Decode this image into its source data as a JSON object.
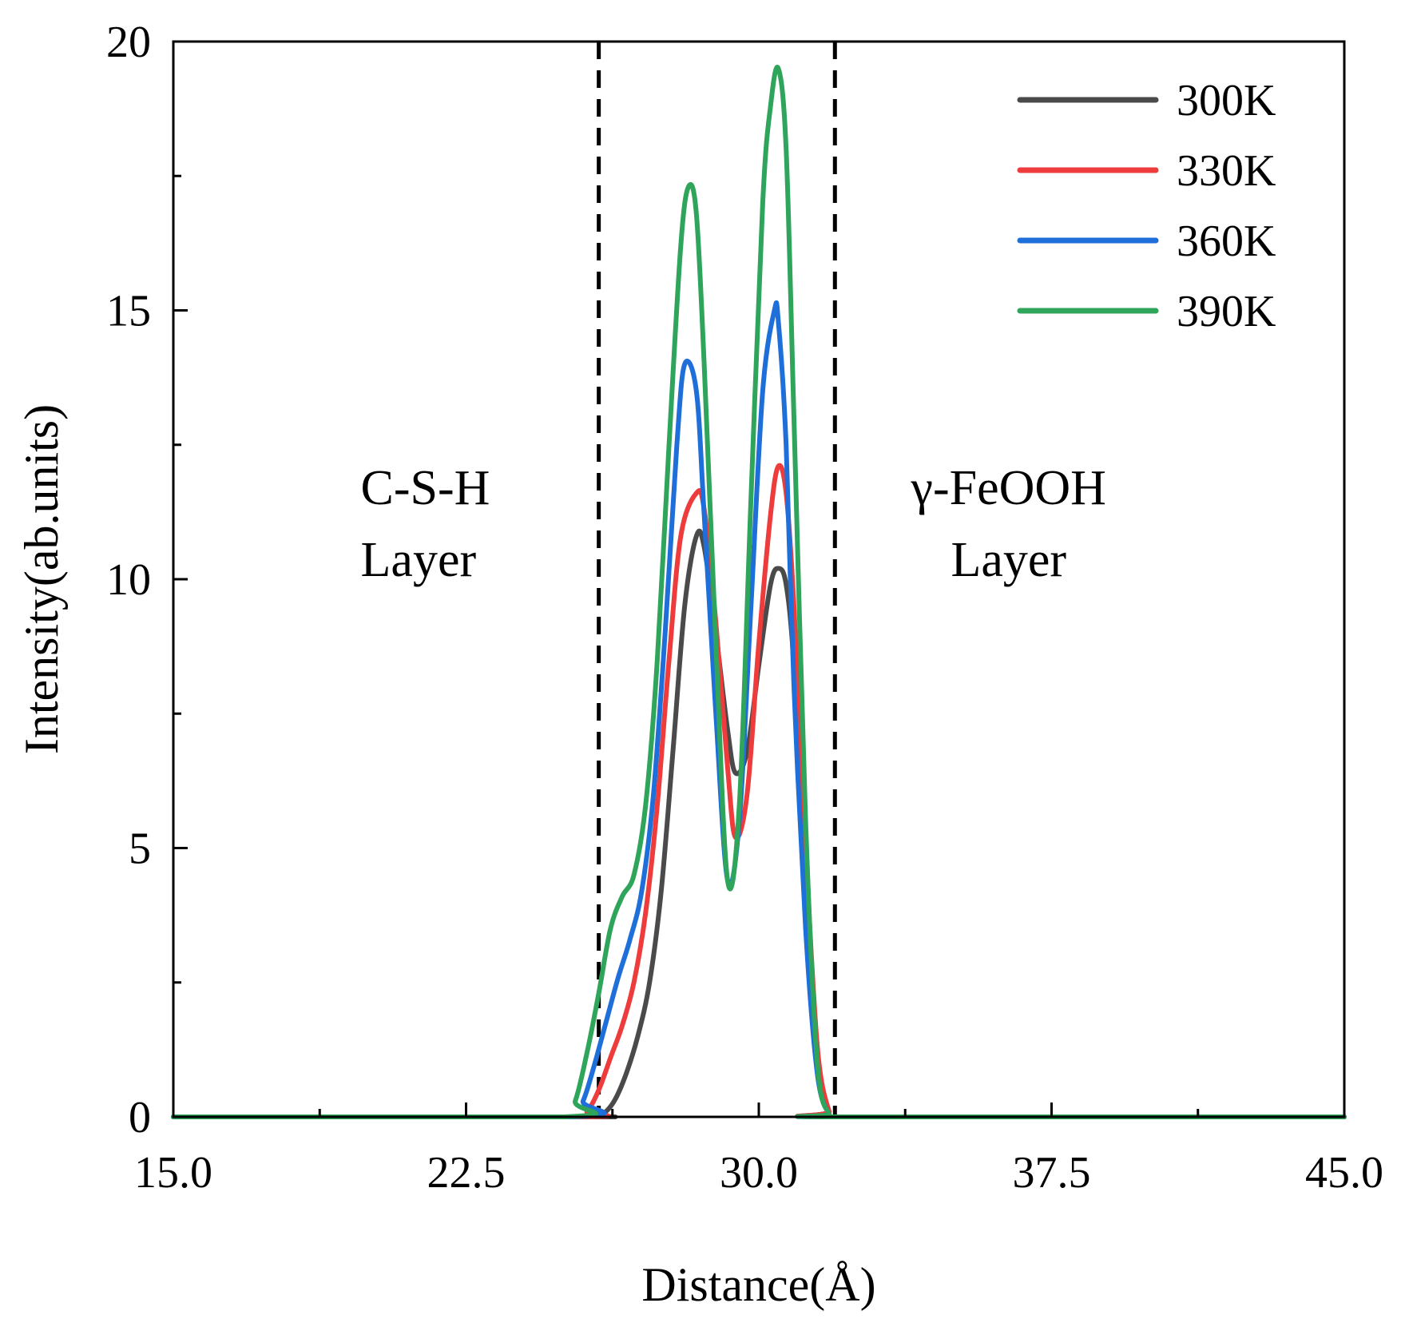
{
  "chart_data": {
    "type": "line",
    "title": "",
    "xlabel": "Distance(Å)",
    "ylabel": "Intensity(ab.units)",
    "xlim": [
      15.0,
      45.0
    ],
    "ylim": [
      0,
      20
    ],
    "x_ticks": [
      15.0,
      22.5,
      30.0,
      37.5,
      45.0
    ],
    "x_tick_labels": [
      "15.0",
      "22.5",
      "30.0",
      "37.5",
      "45.0"
    ],
    "y_ticks": [
      0,
      5,
      10,
      15,
      20
    ],
    "y_tick_labels": [
      "0",
      "5",
      "10",
      "15",
      "20"
    ],
    "grid": false,
    "legend_position": "top-right",
    "reference_lines": [
      {
        "x": 25.9,
        "style": "dashed"
      },
      {
        "x": 31.95,
        "style": "dashed"
      }
    ],
    "annotations": [
      {
        "lines": [
          "C-S-H",
          "Layer"
        ],
        "x": 19.8,
        "y": 11.4,
        "align": "start"
      },
      {
        "lines": [
          "γ-FeOOH",
          "Layer"
        ],
        "x": 36.4,
        "y": 11.4,
        "align": "middle"
      }
    ],
    "series": [
      {
        "name": "300K",
        "color": "#4a4a4a",
        "x": [
          15.0,
          25.5,
          25.7,
          26.0,
          26.3,
          26.6,
          26.9,
          27.2,
          27.5,
          27.8,
          28.1,
          28.4,
          28.6,
          28.9,
          29.2,
          29.4,
          29.7,
          30.0,
          30.3,
          30.5,
          30.7,
          30.9,
          31.2,
          31.5,
          31.8,
          32.0,
          45.0
        ],
        "y": [
          0,
          0,
          0,
          0.05,
          0.3,
          0.8,
          1.5,
          2.5,
          4.2,
          6.8,
          9.5,
          10.8,
          10.6,
          9.0,
          7.2,
          6.4,
          6.8,
          8.4,
          9.9,
          10.2,
          9.9,
          8.4,
          4.5,
          1.2,
          0.1,
          0,
          0
        ]
      },
      {
        "name": "330K",
        "color": "#ee3b3b",
        "x": [
          15.0,
          25.3,
          25.6,
          25.9,
          26.2,
          26.5,
          26.8,
          27.1,
          27.4,
          27.7,
          28.0,
          28.4,
          28.6,
          28.9,
          29.2,
          29.4,
          29.7,
          30.0,
          30.3,
          30.5,
          30.7,
          30.9,
          31.2,
          31.5,
          31.8,
          32.0,
          45.0
        ],
        "y": [
          0,
          0,
          0.1,
          0.5,
          1.1,
          1.7,
          2.5,
          3.8,
          5.8,
          8.5,
          10.8,
          11.6,
          11.3,
          9.2,
          6.5,
          5.2,
          6.0,
          8.8,
          11.2,
          12.1,
          11.6,
          9.5,
          5.0,
          1.3,
          0.1,
          0,
          0
        ]
      },
      {
        "name": "360K",
        "color": "#1e6fd9",
        "x": [
          15.0,
          25.2,
          25.5,
          25.8,
          26.1,
          26.4,
          26.7,
          27.0,
          27.3,
          27.6,
          27.9,
          28.1,
          28.4,
          28.6,
          28.9,
          29.2,
          29.5,
          29.8,
          30.1,
          30.4,
          30.5,
          30.7,
          30.9,
          31.2,
          31.5,
          31.8,
          32.0,
          45.0
        ],
        "y": [
          0,
          0,
          0.3,
          1.0,
          1.8,
          2.6,
          3.3,
          4.2,
          6.0,
          9.0,
          12.5,
          14.0,
          13.5,
          11.2,
          7.5,
          4.4,
          5.5,
          9.5,
          13.5,
          15.0,
          14.8,
          12.5,
          8.0,
          3.5,
          0.8,
          0.05,
          0,
          0
        ]
      },
      {
        "name": "390K",
        "color": "#2ea55a",
        "x": [
          15.0,
          25.0,
          25.3,
          25.6,
          25.9,
          26.2,
          26.5,
          26.8,
          27.1,
          27.4,
          27.7,
          28.0,
          28.2,
          28.4,
          28.6,
          28.9,
          29.2,
          29.5,
          29.8,
          30.1,
          30.3,
          30.5,
          30.7,
          30.9,
          31.2,
          31.5,
          31.8,
          32.0,
          45.0
        ],
        "y": [
          0,
          0,
          0.3,
          1.2,
          2.3,
          3.5,
          4.1,
          4.5,
          5.8,
          8.5,
          12.5,
          16.2,
          17.3,
          16.8,
          14.0,
          8.8,
          4.4,
          5.8,
          11.5,
          17.0,
          18.8,
          19.5,
          18.0,
          13.0,
          5.5,
          1.0,
          0.05,
          0,
          0
        ]
      }
    ]
  }
}
